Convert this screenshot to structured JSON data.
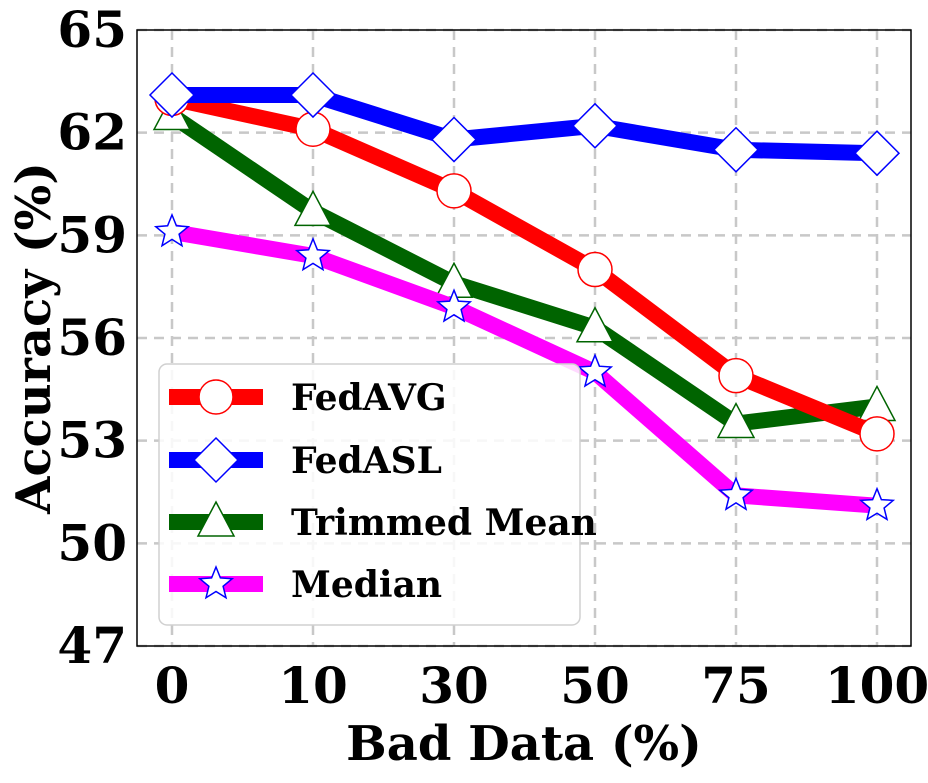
{
  "chart_data": {
    "type": "line",
    "xlabel": "Bad Data (%)",
    "ylabel": "Accuracy (%)",
    "categories": [
      "0",
      "10",
      "30",
      "50",
      "75",
      "100"
    ],
    "yticks": [
      47,
      50,
      53,
      56,
      59,
      62,
      65
    ],
    "ylim": [
      47,
      65
    ],
    "grid": true,
    "legend_position": "lower-left",
    "series": [
      {
        "name": "FedAVG",
        "color": "#ff0000",
        "marker": "circle",
        "values": [
          63.0,
          62.1,
          60.3,
          58.0,
          54.9,
          53.2
        ]
      },
      {
        "name": "FedASL",
        "color": "#0000ff",
        "marker": "diamond",
        "values": [
          63.1,
          63.1,
          61.8,
          62.2,
          61.5,
          61.4
        ]
      },
      {
        "name": "Trimmed Mean",
        "color": "#006400",
        "marker": "triangle",
        "values": [
          62.5,
          59.7,
          57.6,
          56.3,
          53.5,
          54.0
        ]
      },
      {
        "name": "Median",
        "color": "#ff00ff",
        "marker": "star",
        "values": [
          59.1,
          58.4,
          56.9,
          55.0,
          51.4,
          51.1
        ]
      }
    ]
  }
}
